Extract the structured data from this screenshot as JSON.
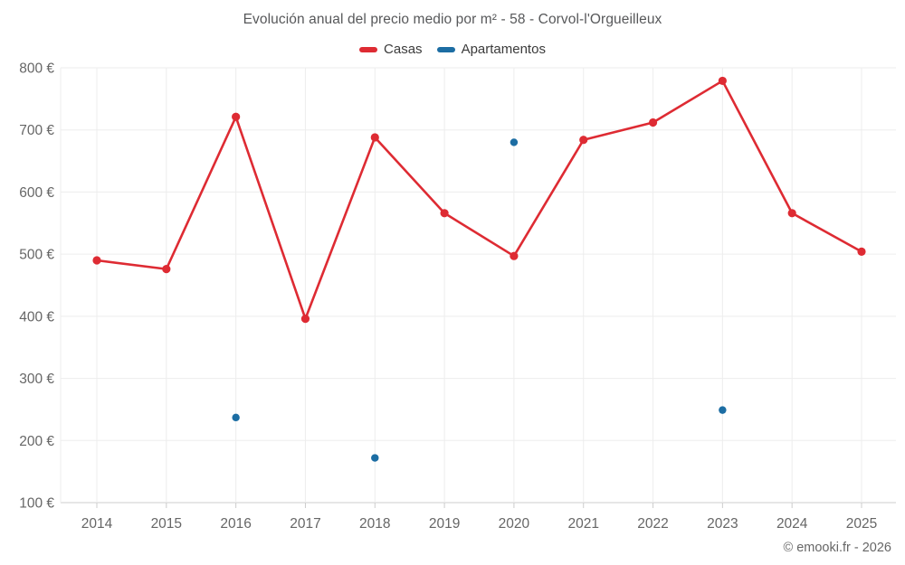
{
  "title": "Evolución anual del precio medio por m² - 58 - Corvol-l'Orgueilleux",
  "footer": "© emooki.fr - 2026",
  "chart_data": {
    "type": "line",
    "categories": [
      "2014",
      "2015",
      "2016",
      "2017",
      "2018",
      "2019",
      "2020",
      "2021",
      "2022",
      "2023",
      "2024",
      "2025"
    ],
    "series": [
      {
        "name": "Casas",
        "type": "line",
        "color": "#de2b33",
        "values": [
          490,
          476,
          721,
          396,
          688,
          566,
          497,
          684,
          712,
          779,
          566,
          504
        ]
      },
      {
        "name": "Apartamentos",
        "type": "scatter",
        "color": "#1c6da3",
        "values": [
          null,
          null,
          237,
          null,
          172,
          null,
          680,
          null,
          null,
          249,
          null,
          null
        ]
      }
    ],
    "ylim": [
      100,
      800
    ],
    "yticks": [
      100,
      200,
      300,
      400,
      500,
      600,
      700,
      800
    ],
    "ytick_suffix": " €",
    "grid": true,
    "legend_position": "top",
    "colors": {
      "grid_line": "#ededed",
      "axis_line": "#cccccc",
      "axis_text": "#666666",
      "title_text": "#57585a"
    }
  }
}
